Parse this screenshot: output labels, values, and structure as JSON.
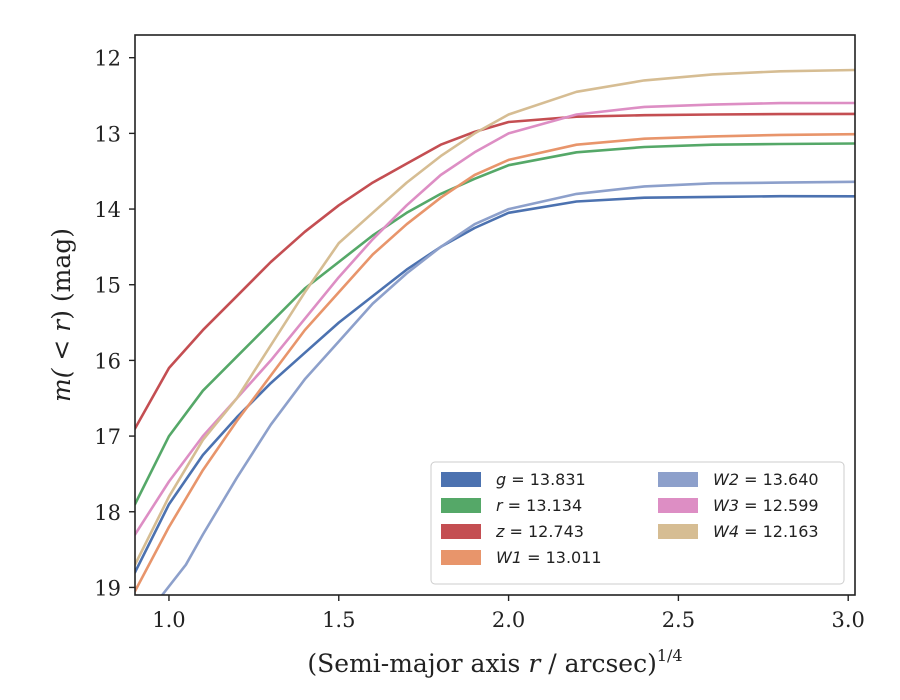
{
  "chart_data": {
    "type": "line",
    "xlabel": "(Semi-major axis r / arcsec)",
    "xlabel_var": "r",
    "xlabel_prefix": "(Semi-major axis ",
    "xlabel_suffix": " / arcsec)",
    "xlabel_exp": "1/4",
    "ylabel_prefix": "m(",
    "ylabel_mid": " < ",
    "ylabel_var": "r",
    "ylabel_suffix": ") (mag)",
    "xlim": [
      0.9,
      3.02
    ],
    "ylim": [
      19.1,
      11.7
    ],
    "y_inverted": true,
    "x_ticks": [
      1.0,
      1.5,
      2.0,
      2.5,
      3.0
    ],
    "x_tick_labels": [
      "1.0",
      "1.5",
      "2.0",
      "2.5",
      "3.0"
    ],
    "y_ticks": [
      12,
      13,
      14,
      15,
      16,
      17,
      18,
      19
    ],
    "y_tick_labels": [
      "12",
      "13",
      "14",
      "15",
      "16",
      "17",
      "18",
      "19"
    ],
    "grid": false,
    "legend_position": "lower-right",
    "series": [
      {
        "name": "g",
        "legend": "g = 13.831",
        "color": "#4c72b0",
        "x": [
          0.9,
          1.0,
          1.1,
          1.2,
          1.3,
          1.4,
          1.5,
          1.6,
          1.7,
          1.8,
          1.9,
          2.0,
          2.2,
          2.4,
          2.6,
          2.8,
          3.02
        ],
        "y": [
          18.8,
          17.9,
          17.25,
          16.75,
          16.3,
          15.9,
          15.5,
          15.15,
          14.8,
          14.5,
          14.25,
          14.05,
          13.9,
          13.85,
          13.84,
          13.83,
          13.831
        ]
      },
      {
        "name": "r",
        "legend": "r = 13.134",
        "color": "#55a868",
        "x": [
          0.9,
          1.0,
          1.1,
          1.2,
          1.3,
          1.4,
          1.5,
          1.6,
          1.7,
          1.8,
          1.9,
          2.0,
          2.2,
          2.4,
          2.6,
          2.8,
          3.02
        ],
        "y": [
          17.9,
          17.0,
          16.4,
          15.95,
          15.5,
          15.05,
          14.7,
          14.35,
          14.05,
          13.8,
          13.6,
          13.42,
          13.25,
          13.18,
          13.15,
          13.14,
          13.134
        ]
      },
      {
        "name": "z",
        "legend": "z = 12.743",
        "color": "#c44e52",
        "x": [
          0.9,
          1.0,
          1.1,
          1.2,
          1.3,
          1.4,
          1.5,
          1.6,
          1.7,
          1.8,
          1.9,
          2.0,
          2.2,
          2.4,
          2.6,
          2.8,
          3.02
        ],
        "y": [
          16.9,
          16.1,
          15.6,
          15.15,
          14.7,
          14.3,
          13.95,
          13.65,
          13.4,
          13.15,
          12.98,
          12.85,
          12.78,
          12.76,
          12.75,
          12.745,
          12.743
        ]
      },
      {
        "name": "W1",
        "legend": "W1 = 13.011",
        "color": "#e8956b",
        "x": [
          0.9,
          1.0,
          1.1,
          1.2,
          1.3,
          1.4,
          1.5,
          1.6,
          1.7,
          1.8,
          1.9,
          2.0,
          2.2,
          2.4,
          2.6,
          2.8,
          3.02
        ],
        "y": [
          19.05,
          18.2,
          17.45,
          16.8,
          16.2,
          15.6,
          15.1,
          14.6,
          14.2,
          13.85,
          13.55,
          13.35,
          13.15,
          13.07,
          13.04,
          13.02,
          13.011
        ]
      },
      {
        "name": "W2",
        "legend": "W2 = 13.640",
        "color": "#8da0cb",
        "x": [
          0.98,
          1.05,
          1.1,
          1.2,
          1.3,
          1.4,
          1.5,
          1.6,
          1.7,
          1.8,
          1.9,
          2.0,
          2.2,
          2.4,
          2.6,
          2.8,
          3.02
        ],
        "y": [
          19.1,
          18.7,
          18.3,
          17.55,
          16.85,
          16.25,
          15.75,
          15.25,
          14.85,
          14.5,
          14.2,
          14.0,
          13.8,
          13.7,
          13.66,
          13.65,
          13.64
        ]
      },
      {
        "name": "W3",
        "legend": "W3 = 12.599",
        "color": "#dd8ec4",
        "x": [
          0.9,
          1.0,
          1.1,
          1.2,
          1.3,
          1.4,
          1.5,
          1.6,
          1.7,
          1.8,
          1.9,
          2.0,
          2.2,
          2.4,
          2.6,
          2.8,
          3.02
        ],
        "y": [
          18.3,
          17.6,
          17.0,
          16.5,
          16.0,
          15.45,
          14.9,
          14.4,
          13.95,
          13.55,
          13.25,
          13.0,
          12.75,
          12.65,
          12.62,
          12.6,
          12.599
        ]
      },
      {
        "name": "W4",
        "legend": "W4 = 12.163",
        "color": "#d6bd93",
        "x": [
          0.9,
          1.0,
          1.1,
          1.2,
          1.3,
          1.4,
          1.5,
          1.6,
          1.7,
          1.8,
          1.9,
          2.0,
          2.2,
          2.4,
          2.6,
          2.8,
          3.02
        ],
        "y": [
          18.7,
          17.8,
          17.05,
          16.5,
          15.8,
          15.1,
          14.45,
          14.05,
          13.65,
          13.3,
          13.0,
          12.75,
          12.45,
          12.3,
          12.22,
          12.18,
          12.163
        ]
      }
    ]
  }
}
